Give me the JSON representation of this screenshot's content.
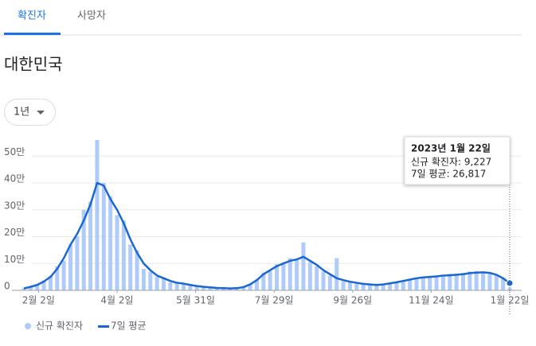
{
  "tabs": [
    "확진자",
    "사망자"
  ],
  "region": "대한민국",
  "range_selector": "1년",
  "tooltip": {
    "date": "2023년 1월 22일",
    "new_cases": "신규 확진자: 9,227",
    "average": "7일 평균: 26,817"
  },
  "chart_data": {
    "type": "combo",
    "x": [
      0,
      5,
      10,
      15,
      20,
      25,
      30,
      35,
      40,
      45,
      50,
      55,
      60,
      65,
      70,
      75,
      80,
      85,
      90,
      95,
      100,
      105,
      110,
      115,
      120,
      125,
      130,
      135,
      140,
      145,
      150,
      155,
      160,
      165,
      170,
      175,
      180,
      185,
      190,
      195,
      200,
      205,
      210,
      215,
      220,
      225,
      230,
      235,
      240,
      245,
      250,
      255,
      260,
      265,
      270,
      275,
      280,
      285,
      290,
      295,
      300,
      305,
      310,
      315,
      320,
      325,
      330,
      335,
      340,
      345,
      350,
      355,
      360,
      365
    ],
    "xlim": [
      0,
      365
    ],
    "xticks": [
      {
        "value": 11,
        "label": "2월 2일"
      },
      {
        "value": 70,
        "label": "4월 2일"
      },
      {
        "value": 129,
        "label": "5월 31일"
      },
      {
        "value": 188,
        "label": "7월 29일"
      },
      {
        "value": 247,
        "label": "9월 26일"
      },
      {
        "value": 306,
        "label": "11월 24일"
      },
      {
        "value": 365,
        "label": "1월 22일"
      }
    ],
    "ylim": [
      0,
      560000
    ],
    "yticks": [
      0,
      {
        "value": 100000,
        "label": "10만"
      },
      {
        "value": 200000,
        "label": "20만"
      },
      {
        "value": 300000,
        "label": "30만"
      },
      {
        "value": 400000,
        "label": "40만"
      },
      {
        "value": 500000,
        "label": "50만"
      }
    ],
    "grid": true,
    "series": [
      {
        "name": "신규 확진자",
        "type": "bar",
        "color": "#aecbfa",
        "values": [
          8000,
          12000,
          18000,
          36000,
          54000,
          90000,
          110000,
          170000,
          200000,
          300000,
          330000,
          560000,
          400000,
          350000,
          280000,
          260000,
          170000,
          150000,
          80000,
          70000,
          50000,
          48000,
          30000,
          27000,
          24000,
          18000,
          14000,
          12000,
          10000,
          9000,
          7000,
          6000,
          9000,
          13000,
          24000,
          40000,
          66000,
          72000,
          97000,
          105000,
          120000,
          112000,
          178000,
          105000,
          90000,
          70000,
          55000,
          120000,
          33000,
          30000,
          25000,
          22000,
          20000,
          18000,
          23000,
          27000,
          30000,
          34000,
          42000,
          45000,
          50000,
          48000,
          55000,
          58000,
          62000,
          60000,
          65000,
          70000,
          72000,
          70000,
          68000,
          57000,
          44000,
          9227
        ]
      },
      {
        "name": "7일 평균",
        "type": "line",
        "color": "#1a66d2",
        "values": [
          7000,
          13000,
          20000,
          33000,
          50000,
          80000,
          120000,
          170000,
          210000,
          260000,
          320000,
          400000,
          390000,
          340000,
          300000,
          250000,
          190000,
          140000,
          100000,
          75000,
          55000,
          45000,
          35000,
          28000,
          25000,
          20000,
          16000,
          13000,
          11000,
          9000,
          8000,
          7000,
          8000,
          12000,
          22000,
          38000,
          60000,
          75000,
          90000,
          100000,
          110000,
          115000,
          125000,
          110000,
          95000,
          75000,
          60000,
          45000,
          38000,
          32000,
          28000,
          24000,
          22000,
          20000,
          22000,
          26000,
          30000,
          35000,
          40000,
          45000,
          48000,
          50000,
          52000,
          55000,
          56000,
          58000,
          60000,
          64000,
          66000,
          67000,
          65000,
          58000,
          45000,
          26817
        ]
      }
    ]
  }
}
